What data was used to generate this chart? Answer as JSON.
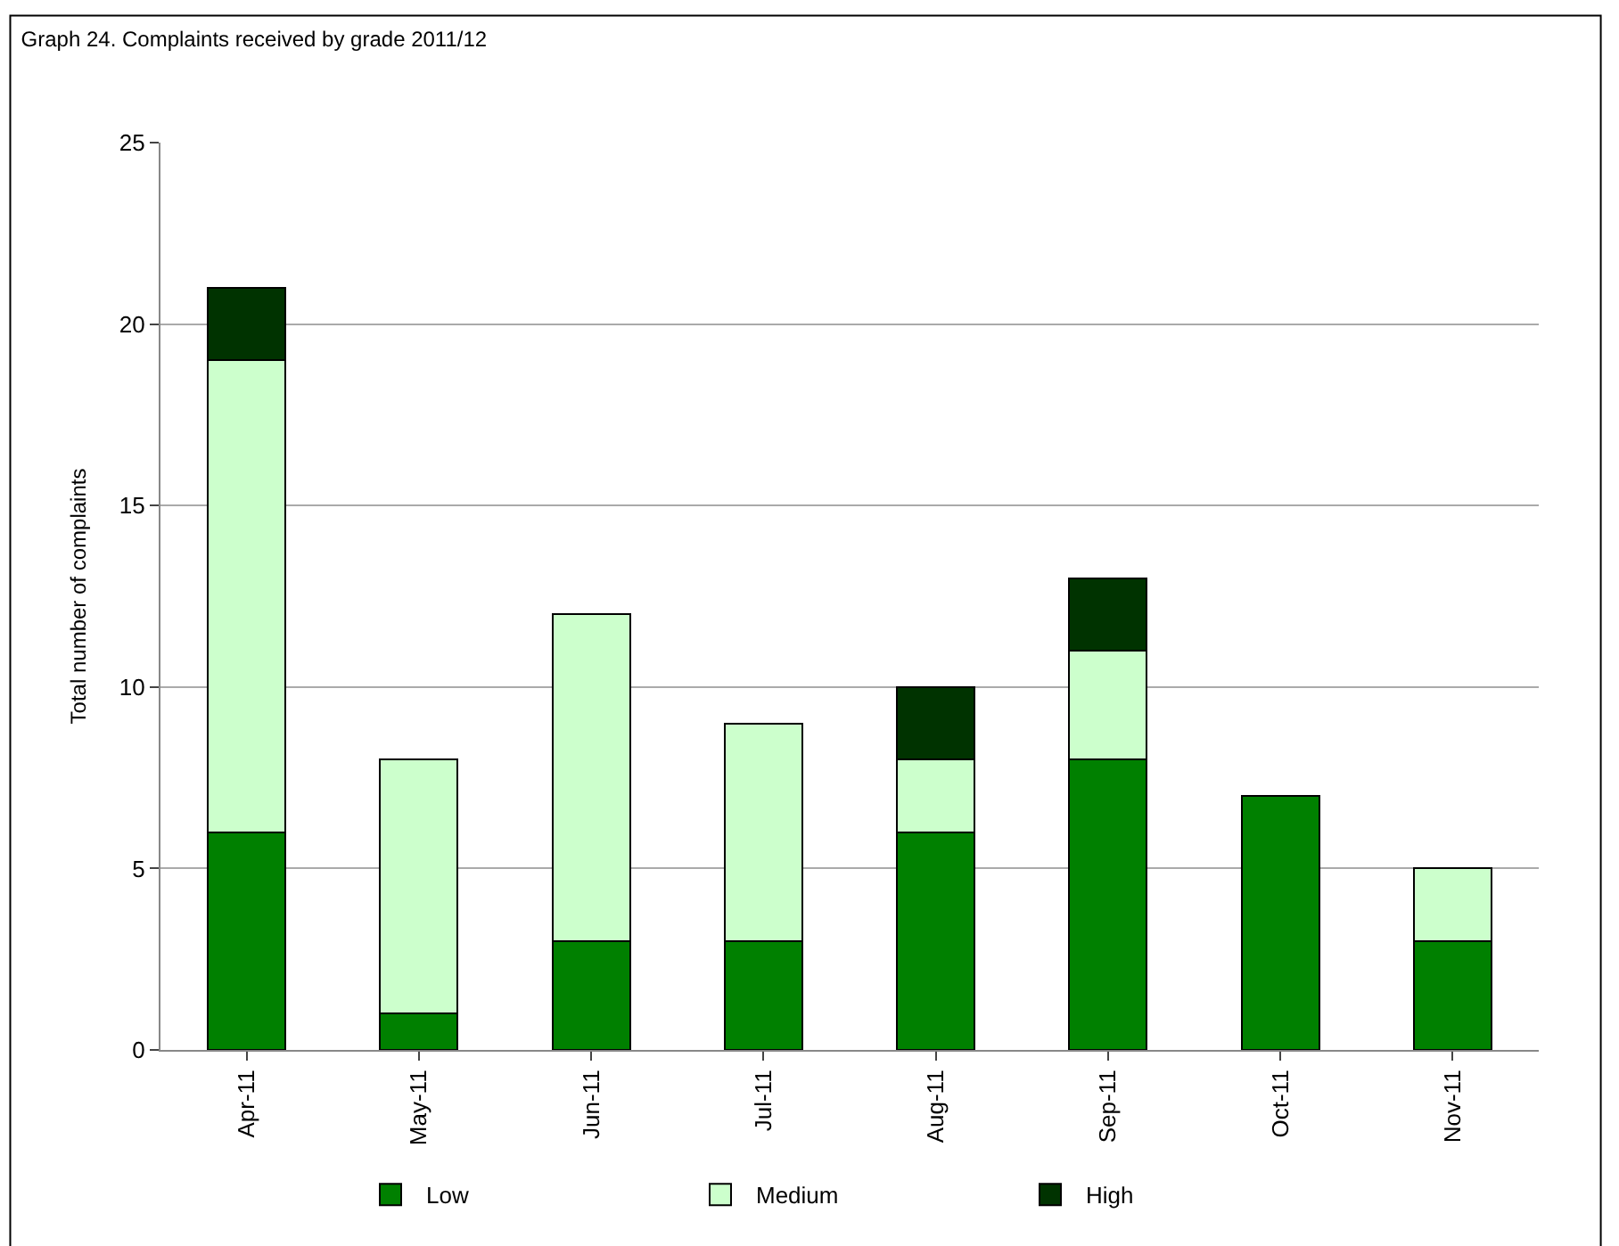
{
  "chart_data": {
    "type": "bar",
    "title": "Graph 24. Complaints received by grade 2011/12",
    "ylabel": "Total number of complaints",
    "categories": [
      "Apr-11",
      "May-11",
      "Jun-11",
      "Jul-11",
      "Aug-11",
      "Sep-11",
      "Oct-11",
      "Nov-11"
    ],
    "series": [
      {
        "name": "Low",
        "color": "#008000",
        "values": [
          6,
          1,
          3,
          3,
          6,
          8,
          7,
          3
        ]
      },
      {
        "name": "Medium",
        "color": "#ccffcc",
        "values": [
          13,
          7,
          9,
          6,
          2,
          3,
          0,
          2
        ]
      },
      {
        "name": "High",
        "color": "#003300",
        "values": [
          2,
          0,
          0,
          0,
          2,
          2,
          0,
          0
        ]
      }
    ],
    "stacked": true,
    "ylim": [
      0,
      25
    ],
    "yticks": [
      0,
      5,
      10,
      15,
      20,
      25
    ],
    "grid": "y",
    "legend": "bottom"
  }
}
